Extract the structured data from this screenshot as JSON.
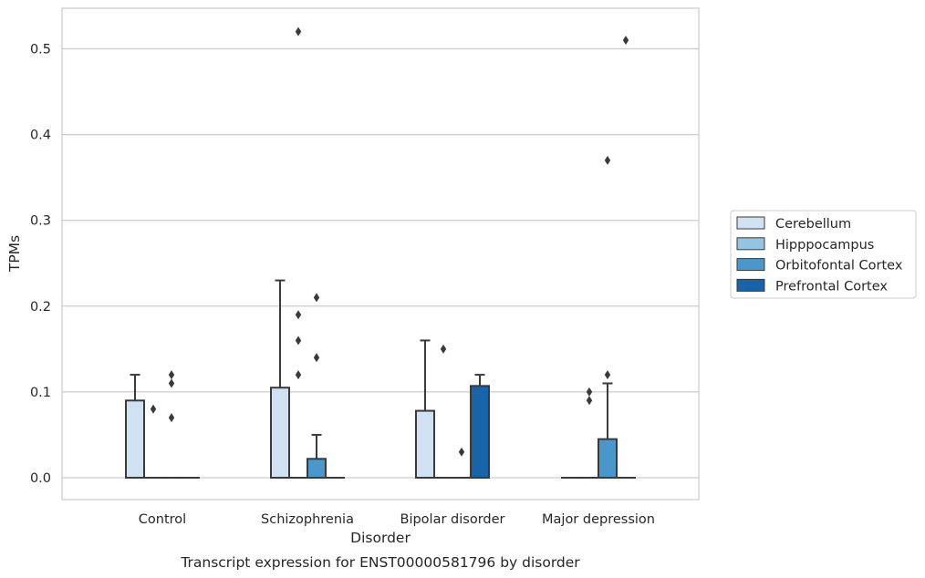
{
  "chart_data": {
    "type": "box",
    "title": "",
    "caption": "Transcript expression for ENST00000581796 by disorder",
    "xlabel": "Disorder",
    "ylabel": "TPMs",
    "ylim": [
      -0.025,
      0.547
    ],
    "yticks": [
      "0.0",
      "0.1",
      "0.2",
      "0.3",
      "0.4",
      "0.5"
    ],
    "grid": "horizontal",
    "legend_position": "right",
    "categories": [
      "Control",
      "Schizophrenia",
      "Bipolar disorder",
      "Major depression"
    ],
    "series": [
      {
        "name": "Cerebellum",
        "color": "#d0e1f2",
        "boxes": [
          {
            "q1": 0.0,
            "median": 0.0,
            "q3": 0.09,
            "whisker_low": 0.0,
            "whisker_high": 0.12,
            "outliers": []
          },
          {
            "q1": 0.0,
            "median": 0.0,
            "q3": 0.105,
            "whisker_low": 0.0,
            "whisker_high": 0.23,
            "outliers": []
          },
          {
            "q1": 0.0,
            "median": 0.0,
            "q3": 0.078,
            "whisker_low": 0.0,
            "whisker_high": 0.16,
            "outliers": []
          },
          {
            "q1": 0.0,
            "median": 0.0,
            "q3": 0.0,
            "whisker_low": 0.0,
            "whisker_high": 0.0,
            "outliers": []
          }
        ]
      },
      {
        "name": "Hipppocampus",
        "color": "#94c4df",
        "boxes": [
          {
            "q1": 0.0,
            "median": 0.0,
            "q3": 0.0,
            "whisker_low": 0.0,
            "whisker_high": 0.0,
            "outliers": [
              0.08
            ]
          },
          {
            "q1": 0.0,
            "median": 0.0,
            "q3": 0.0,
            "whisker_low": 0.0,
            "whisker_high": 0.0,
            "outliers": [
              0.52,
              0.19,
              0.16,
              0.12
            ]
          },
          {
            "q1": 0.0,
            "median": 0.0,
            "q3": 0.0,
            "whisker_low": 0.0,
            "whisker_high": 0.0,
            "outliers": [
              0.15
            ]
          },
          {
            "q1": 0.0,
            "median": 0.0,
            "q3": 0.0,
            "whisker_low": 0.0,
            "whisker_high": 0.0,
            "outliers": [
              0.1,
              0.09
            ]
          }
        ]
      },
      {
        "name": "Orbitofontal Cortex",
        "color": "#4a98c9",
        "boxes": [
          {
            "q1": 0.0,
            "median": 0.0,
            "q3": 0.0,
            "whisker_low": 0.0,
            "whisker_high": 0.0,
            "outliers": [
              0.12,
              0.11,
              0.07
            ]
          },
          {
            "q1": 0.0,
            "median": 0.0,
            "q3": 0.022,
            "whisker_low": 0.0,
            "whisker_high": 0.05,
            "outliers": [
              0.21,
              0.14
            ]
          },
          {
            "q1": 0.0,
            "median": 0.0,
            "q3": 0.0,
            "whisker_low": 0.0,
            "whisker_high": 0.0,
            "outliers": [
              0.03
            ]
          },
          {
            "q1": 0.0,
            "median": 0.0,
            "q3": 0.045,
            "whisker_low": 0.0,
            "whisker_high": 0.11,
            "outliers": [
              0.37,
              0.12
            ]
          }
        ]
      },
      {
        "name": "Prefrontal Cortex",
        "color": "#1764ab",
        "boxes": [
          {
            "q1": 0.0,
            "median": 0.0,
            "q3": 0.0,
            "whisker_low": 0.0,
            "whisker_high": 0.0,
            "outliers": []
          },
          {
            "q1": 0.0,
            "median": 0.0,
            "q3": 0.0,
            "whisker_low": 0.0,
            "whisker_high": 0.0,
            "outliers": []
          },
          {
            "q1": 0.0,
            "median": 0.0,
            "q3": 0.107,
            "whisker_low": 0.0,
            "whisker_high": 0.12,
            "outliers": []
          },
          {
            "q1": 0.0,
            "median": 0.0,
            "q3": 0.0,
            "whisker_low": 0.0,
            "whisker_high": 0.0,
            "outliers": [
              0.51
            ]
          }
        ]
      }
    ]
  }
}
